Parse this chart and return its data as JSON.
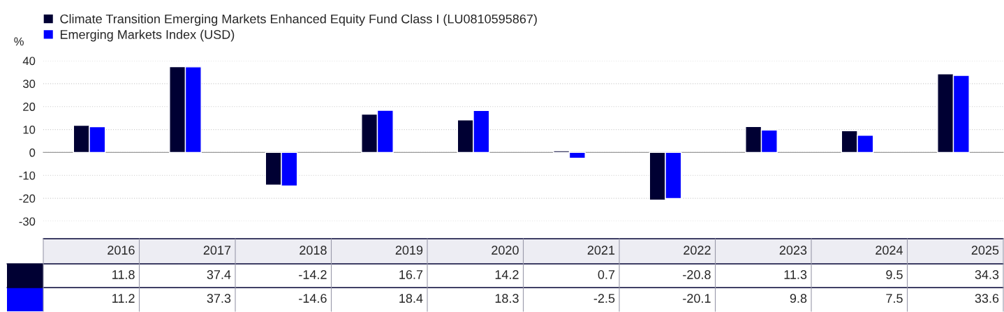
{
  "chart_data": {
    "type": "bar",
    "ylabel": "%",
    "categories": [
      "2016",
      "2017",
      "2018",
      "2019",
      "2020",
      "2021",
      "2022",
      "2023",
      "2024",
      "2025"
    ],
    "series": [
      {
        "name": "Climate Transition Emerging Markets Enhanced Equity Fund Class I (LU0810595867)",
        "color": "#000033",
        "values": [
          11.8,
          37.4,
          -14.2,
          16.7,
          14.2,
          0.7,
          -20.8,
          11.3,
          9.5,
          34.3
        ]
      },
      {
        "name": "Emerging Markets Index (USD)",
        "color": "#0000ff",
        "values": [
          11.2,
          37.3,
          -14.6,
          18.4,
          18.3,
          -2.5,
          -20.1,
          9.8,
          7.5,
          33.6
        ]
      }
    ],
    "ylim": [
      -30,
      40
    ],
    "yticks": [
      -30,
      -20,
      -10,
      0,
      10,
      20,
      30,
      40
    ],
    "grid": "y",
    "legend": "top left",
    "data_labels": true
  }
}
